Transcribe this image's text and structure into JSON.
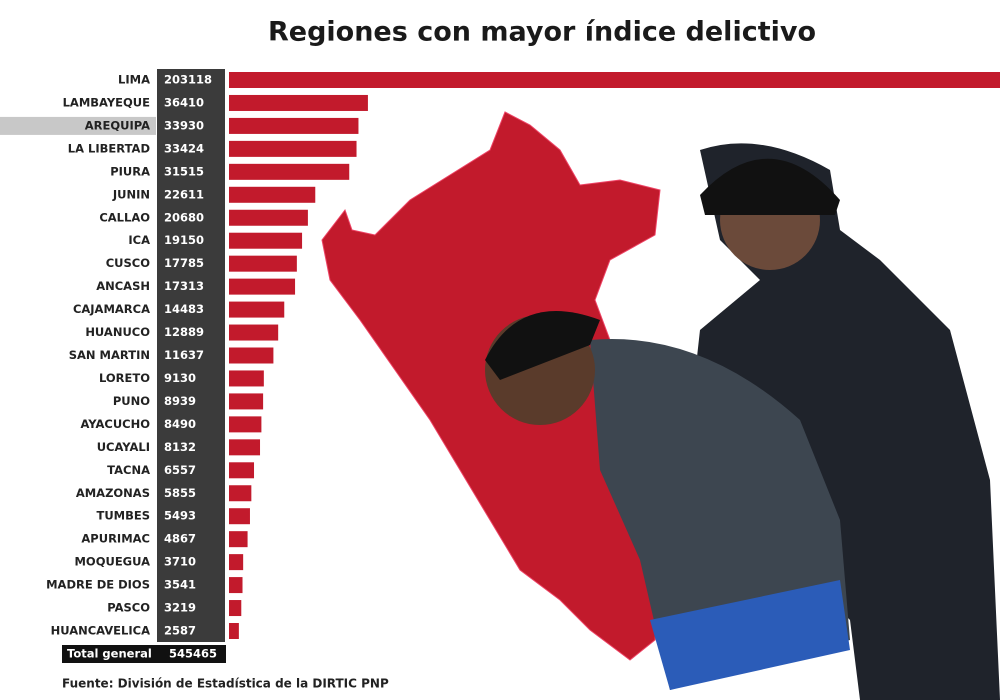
{
  "chart_data": {
    "type": "bar",
    "orientation": "horizontal",
    "title": "Regiones con mayor índice delictivo",
    "categories": [
      "LIMA",
      "LAMBAYEQUE",
      "AREQUIPA",
      "LA LIBERTAD",
      "PIURA",
      "JUNIN",
      "CALLAO",
      "ICA",
      "CUSCO",
      "ANCASH",
      "CAJAMARCA",
      "HUANUCO",
      "SAN MARTIN",
      "LORETO",
      "PUNO",
      "AYACUCHO",
      "UCAYALI",
      "TACNA",
      "AMAZONAS",
      "TUMBES",
      "APURIMAC",
      "MOQUEGUA",
      "MADRE DE DIOS",
      "PASCO",
      "HUANCAVELICA"
    ],
    "values": [
      203118,
      36410,
      33930,
      33424,
      31515,
      22611,
      20680,
      19150,
      17785,
      17313,
      14483,
      12889,
      11637,
      9130,
      8939,
      8490,
      8132,
      6557,
      5855,
      5493,
      4867,
      3710,
      3541,
      3219,
      2587
    ],
    "color": "#c21a2c",
    "total": {
      "label": "Total general",
      "value": 545465
    },
    "source": "Fuente: División de Estadística de la DIRTIC PNP"
  }
}
